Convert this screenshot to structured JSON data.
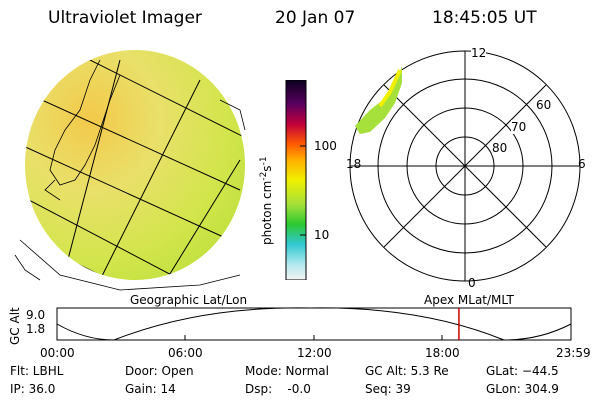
{
  "header": {
    "title": "Ultraviolet Imager",
    "date": "20 Jan 07",
    "time": "18:45:05 UT"
  },
  "colorbar": {
    "label_main": "photon cm",
    "label_exp1": "-2",
    "label_s": "s",
    "label_exp2": "-1",
    "tick_high": "100",
    "tick_low": "10"
  },
  "polar": {
    "mlt_top": "12",
    "mlt_left": "18",
    "mlt_right": "6",
    "mlt_bottom": "0",
    "lat_60": "60",
    "lat_70": "70",
    "lat_80": "80"
  },
  "timeline": {
    "left_caption": "Geographic Lat/Lon",
    "right_caption": "Apex MLat/MLT",
    "axis_label": "GC Alt",
    "y_high": "9.0",
    "y_low": "1.8",
    "ticks": [
      "00:00",
      "06:00",
      "12:00",
      "18:00",
      "23:59"
    ],
    "current_fraction": 0.782
  },
  "footer": {
    "filter": "Flt: LBHL",
    "ip": "IP: 36.0",
    "door": "Door: Open",
    "gain": "Gain: 14",
    "mode": "Mode: Normal",
    "dsp": "Dsp:    -0.0",
    "gc_alt": "GC Alt: 5.3 Re",
    "seq": "Seq: 39",
    "glat": "GLat: −44.5",
    "glon": "GLon: 304.9"
  },
  "colors": {
    "marker": "#cc0000",
    "disk": "#d4e64a"
  }
}
